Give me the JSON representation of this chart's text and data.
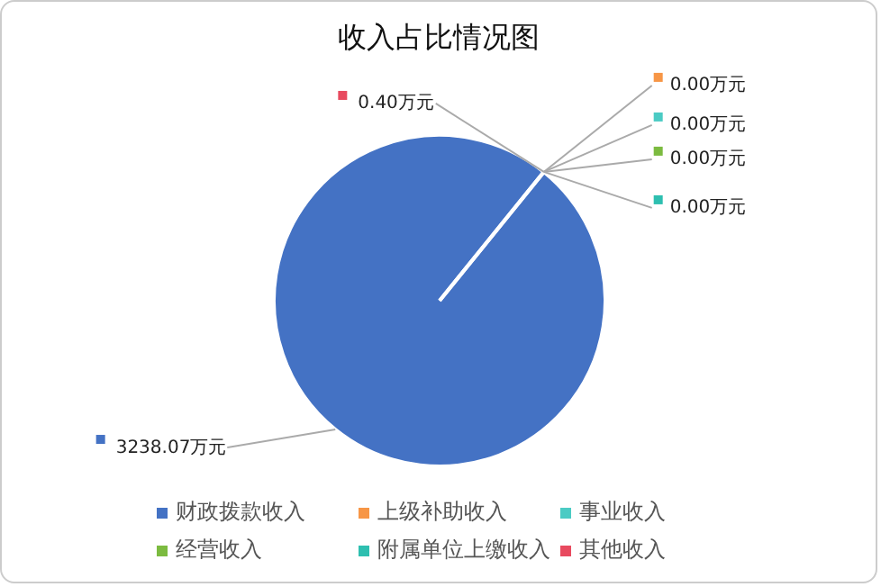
{
  "chart_data": {
    "type": "pie",
    "title": "收入占比情况图",
    "categories": [
      "财政拨款收入",
      "上级补助收入",
      "事业收入",
      "经营收入",
      "附属单位上缴收入",
      "其他收入"
    ],
    "values": [
      3238.07,
      0,
      0,
      0,
      0,
      0.4
    ],
    "value_labels": [
      "3238.07万元",
      "0.00万元",
      "0.00万元",
      "0.00万元",
      "0.00万元",
      "0.40万元"
    ],
    "colors": [
      "#4472c4",
      "#f79646",
      "#4bcbc4",
      "#7cbb40",
      "#2ebfb0",
      "#e84a5f"
    ],
    "legend": "bottom"
  }
}
